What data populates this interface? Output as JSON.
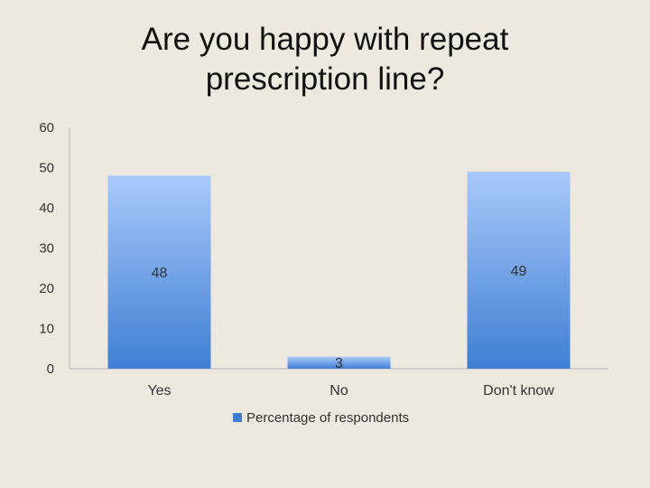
{
  "title_lines": [
    "Are you happy with repeat",
    "prescription line?"
  ],
  "chart_data": {
    "type": "bar",
    "title": "Are you happy with repeat prescription line?",
    "categories": [
      "Yes",
      "No",
      "Don't know"
    ],
    "series": [
      {
        "name": "Percentage of respondents",
        "values": [
          48,
          3,
          49
        ]
      }
    ],
    "data_labels": [
      "48",
      "3",
      "49"
    ],
    "ylim": [
      0,
      60
    ],
    "yticks": [
      0,
      10,
      20,
      30,
      40,
      50,
      60
    ],
    "grid": false,
    "legend": "bottom"
  },
  "colors": {
    "bar_top": "#a9c9fb",
    "bar_bottom": "#3f7fd3",
    "axis": "#b7b7b7"
  }
}
